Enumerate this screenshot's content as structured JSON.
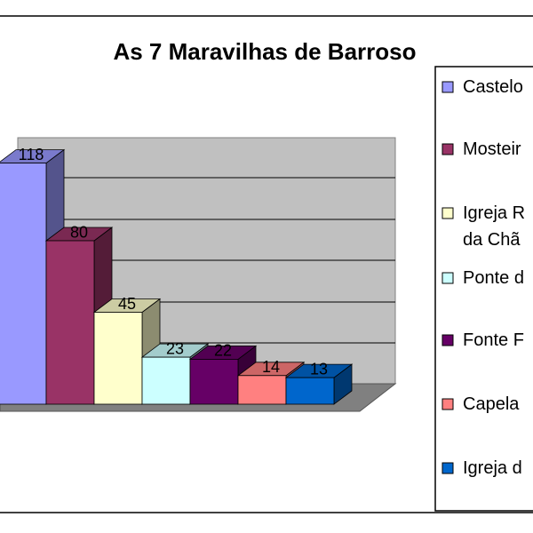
{
  "chart_data": {
    "type": "bar3d",
    "title": "As 7 Maravilhas de Barroso",
    "categories": [
      "Castelo",
      "Mosteir",
      "Igreja R da Chã",
      "Ponte d",
      "Fonte F",
      "Capela",
      "Igreja d"
    ],
    "values": [
      118,
      80,
      45,
      23,
      22,
      14,
      13
    ],
    "colors": [
      "#9999ff",
      "#993366",
      "#ffffcc",
      "#ccffff",
      "#660066",
      "#ff8080",
      "#0066cc"
    ]
  }
}
